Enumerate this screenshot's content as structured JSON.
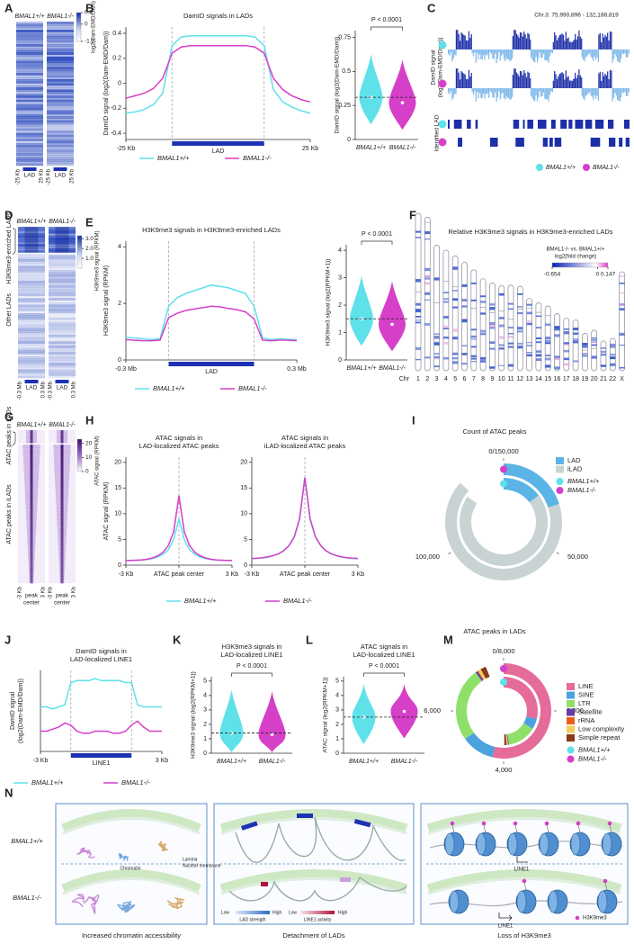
{
  "figure": {
    "panel_labels": [
      "A",
      "B",
      "C",
      "D",
      "E",
      "F",
      "G",
      "H",
      "I",
      "J",
      "K",
      "L",
      "M",
      "N"
    ],
    "diagram": {
      "genotypes": [
        "BMAL1+/+",
        "BMAL1-/-"
      ],
      "chromatin": "Chromatin",
      "lamina": "Lamina",
      "membrane": "Nuclear membrane",
      "lad_strength": [
        "Low",
        "High",
        "LAD strength"
      ],
      "line1_activity": [
        "Low",
        "High",
        "LINE1 activity"
      ],
      "line1": "LINE1",
      "h3k9me3": "H3K9me3",
      "captions": [
        "Increased chromatin accessibility",
        "Detachment of LADs",
        "Loss of H3K9me3"
      ]
    }
  },
  "chart_data": [
    {
      "type": "line",
      "title": "DamID signals in LADs",
      "ylabel": "DamID signal (log2(Dam-EMD/Dam))",
      "region_bar": true,
      "legend": "bottom",
      "x": [
        0,
        1,
        2,
        3,
        4,
        5,
        6,
        7,
        8,
        9,
        10,
        11,
        12,
        13,
        14,
        15,
        16,
        17,
        18,
        19,
        20
      ],
      "xlim": [
        0,
        20
      ],
      "xticks": [
        {
          "value": 0,
          "label": "-25 Kb"
        },
        {
          "value": 10,
          "label": "LAD"
        },
        {
          "value": 20,
          "label": "25 Kb"
        }
      ],
      "ylim": [
        -0.45,
        0.45
      ],
      "yticks": [
        -0.4,
        -0.2,
        0,
        0.2,
        0.4
      ],
      "series": [
        {
          "name": "BMAL1+/+",
          "color": "#5fe1ea",
          "values": [
            -0.24,
            -0.23,
            -0.21,
            -0.17,
            -0.08,
            0.3,
            0.37,
            0.38,
            0.38,
            0.38,
            0.38,
            0.38,
            0.38,
            0.38,
            0.37,
            0.3,
            -0.05,
            -0.15,
            -0.19,
            -0.22,
            -0.24
          ]
        },
        {
          "name": "BMAL1-/-",
          "color": "#d63fc8",
          "values": [
            -0.12,
            -0.1,
            -0.08,
            -0.04,
            0.04,
            0.24,
            0.29,
            0.3,
            0.3,
            0.3,
            0.3,
            0.3,
            0.3,
            0.3,
            0.29,
            0.24,
            0.04,
            -0.05,
            -0.1,
            -0.13,
            -0.15
          ]
        }
      ]
    },
    {
      "type": "violin",
      "ylabel": "DamID signal (log2(Dam-EMD/Dam))",
      "annotation": "P < 0.0001",
      "categories": [
        "BMAL1+/+",
        "BMAL1-/-"
      ],
      "colors": [
        "#5fe1ea",
        "#d63fc8"
      ],
      "values": [
        0.31,
        0.27
      ],
      "ylim": [
        0,
        0.8
      ],
      "yticks": [
        0,
        0.25,
        0.5,
        0.75
      ]
    },
    {
      "type": "line",
      "title": "H3K9me3 signals in H3K9me3-enriched LADs",
      "ylabel": "H3K9me3 signal (RPKM)",
      "region_bar": true,
      "legend": "bottom",
      "x": [
        0,
        1,
        2,
        3,
        4,
        5,
        6,
        7,
        8,
        9,
        10,
        11,
        12,
        13,
        14,
        15,
        16,
        17,
        18,
        19,
        20
      ],
      "xlim": [
        0,
        20
      ],
      "xticks": [
        {
          "value": 0,
          "label": "-0.3 Mb"
        },
        {
          "value": 10,
          "label": "LAD"
        },
        {
          "value": 20,
          "label": "0.3 Mb"
        }
      ],
      "ylim": [
        0,
        4.2
      ],
      "yticks": [
        0,
        2,
        4
      ],
      "series": [
        {
          "name": "BMAL1+/+",
          "color": "#5fe1ea",
          "values": [
            0.8,
            0.78,
            0.75,
            0.72,
            0.75,
            1.9,
            2.2,
            2.35,
            2.45,
            2.55,
            2.65,
            2.6,
            2.55,
            2.45,
            2.35,
            1.9,
            0.78,
            0.72,
            0.75,
            0.73,
            0.72
          ]
        },
        {
          "name": "BMAL1-/-",
          "color": "#d63fc8",
          "values": [
            0.72,
            0.7,
            0.68,
            0.68,
            0.7,
            1.5,
            1.65,
            1.75,
            1.8,
            1.85,
            1.9,
            1.88,
            1.82,
            1.78,
            1.7,
            1.45,
            0.7,
            0.68,
            0.7,
            0.7,
            0.68
          ]
        }
      ]
    },
    {
      "type": "violin",
      "ylabel": "H3K9me3 signal (log2(RPKM+1))",
      "annotation": "P < 0.0001",
      "categories": [
        "BMAL1+/+",
        "BMAL1-/-"
      ],
      "colors": [
        "#5fe1ea",
        "#d63fc8"
      ],
      "values": [
        1.5,
        1.3
      ],
      "ylim": [
        0,
        4.2
      ],
      "yticks": [
        0,
        1,
        2,
        3,
        4
      ]
    },
    {
      "type": "line",
      "title": [
        "ATAC signals in",
        "LAD-localized ATAC peaks"
      ],
      "ylabel": "ATAC signal (RPKM)",
      "legend": "bottom",
      "x": [
        0,
        1,
        2,
        3,
        4,
        5,
        6,
        7,
        8,
        9,
        10,
        11,
        12,
        13,
        14,
        15,
        16,
        17,
        18,
        19,
        20
      ],
      "xlim": [
        0,
        20
      ],
      "xticks": [
        {
          "value": 0,
          "label": "-3 Kb"
        },
        {
          "value": 10,
          "label": "ATAC peak center"
        },
        {
          "value": 20,
          "label": "3 Kb"
        }
      ],
      "ylim": [
        0,
        21
      ],
      "yticks": [
        0,
        5,
        10,
        15,
        20
      ],
      "series": [
        {
          "name": "BMAL1+/+",
          "color": "#5fe1ea",
          "values": [
            0.9,
            0.9,
            0.95,
            1,
            1.1,
            1.3,
            1.6,
            2.1,
            3,
            5,
            9,
            5,
            3,
            2.1,
            1.6,
            1.3,
            1.1,
            1,
            0.95,
            0.9,
            0.9
          ]
        },
        {
          "name": "BMAL1-/-",
          "color": "#d63fc8",
          "values": [
            0.9,
            0.92,
            0.97,
            1.02,
            1.15,
            1.4,
            1.8,
            2.5,
            3.8,
            6.5,
            13.5,
            6.5,
            3.8,
            2.5,
            1.8,
            1.4,
            1.15,
            1.02,
            0.97,
            0.92,
            0.9
          ]
        }
      ]
    },
    {
      "type": "line",
      "title": [
        "ATAC signals in",
        "iLAD-localized ATAC peaks"
      ],
      "x": [
        0,
        1,
        2,
        3,
        4,
        5,
        6,
        7,
        8,
        9,
        10,
        11,
        12,
        13,
        14,
        15,
        16,
        17,
        18,
        19,
        20
      ],
      "xlim": [
        0,
        20
      ],
      "xticks": [
        {
          "value": 0,
          "label": "-3 Kb"
        },
        {
          "value": 10,
          "label": "ATAC peak center"
        },
        {
          "value": 20,
          "label": "3 Kb"
        }
      ],
      "ylim": [
        0,
        21
      ],
      "yticks": [
        0,
        5,
        10,
        15,
        20
      ],
      "series": [
        {
          "color": "#5fe1ea",
          "values": [
            1.25,
            1.3,
            1.4,
            1.55,
            1.8,
            2.15,
            2.75,
            3.75,
            5.4,
            8.9,
            16.9,
            8.9,
            5.4,
            3.75,
            2.75,
            2.15,
            1.8,
            1.55,
            1.4,
            1.3,
            1.25
          ]
        },
        {
          "color": "#d63fc8",
          "values": [
            1.3,
            1.35,
            1.45,
            1.6,
            1.85,
            2.2,
            2.8,
            3.8,
            5.5,
            9,
            17,
            9,
            5.5,
            3.8,
            2.8,
            2.2,
            1.85,
            1.6,
            1.45,
            1.35,
            1.3
          ]
        }
      ]
    },
    {
      "type": "line",
      "title": [
        "DamID signals in",
        "LAD-localized LINE1"
      ],
      "ylabel": [
        "DamID signal",
        "(log2(Dam-EMD/Dam))"
      ],
      "region_bar": true,
      "legend": "bottom",
      "x": [
        0,
        1,
        2,
        3,
        4,
        5,
        6,
        7,
        8,
        9,
        10,
        11,
        12,
        13,
        14,
        15,
        16,
        17,
        18,
        19,
        20
      ],
      "xlim": [
        0,
        20
      ],
      "xticks": [
        {
          "value": 0,
          "label": "-3 Kb"
        },
        {
          "value": 10,
          "label": "LINE1"
        },
        {
          "value": 20,
          "label": "3 Kb"
        }
      ],
      "ylim": [
        0.2,
        0.6
      ],
      "series": [
        {
          "name": "BMAL1+/+",
          "color": "#5fe1ea",
          "values": [
            0.42,
            0.42,
            0.41,
            0.42,
            0.43,
            0.54,
            0.55,
            0.55,
            0.55,
            0.56,
            0.55,
            0.55,
            0.55,
            0.55,
            0.54,
            0.54,
            0.43,
            0.42,
            0.42,
            0.42,
            0.42
          ]
        },
        {
          "name": "BMAL1-/-",
          "color": "#d63fc8",
          "values": [
            0.3,
            0.3,
            0.31,
            0.32,
            0.34,
            0.33,
            0.3,
            0.29,
            0.29,
            0.3,
            0.3,
            0.3,
            0.29,
            0.29,
            0.3,
            0.33,
            0.35,
            0.32,
            0.3,
            0.3,
            0.3
          ]
        }
      ]
    },
    {
      "type": "violin",
      "title": [
        "H3K9me3 signals in",
        "LAD-localized LINE1"
      ],
      "ylabel": "H3K9me3 signal (log2(RPKM+1))",
      "annotation": "P < 0.0001",
      "categories": [
        "BMAL1+/+",
        "BMAL1-/-"
      ],
      "colors": [
        "#5fe1ea",
        "#d63fc8"
      ],
      "values": [
        1.4,
        1.3
      ],
      "ylim": [
        0,
        5.3
      ],
      "yticks": [
        0,
        1,
        2,
        3,
        4,
        5
      ]
    },
    {
      "type": "violin",
      "title": [
        "ATAC signals in",
        "LAD-localized LINE1"
      ],
      "ylabel": "ATAC signal (log2(RPKM+1))",
      "annotation": "P < 0.0001",
      "categories": [
        "BMAL1+/+",
        "BMAL1-/-"
      ],
      "colors": [
        "#5fe1ea",
        "#d63fc8"
      ],
      "values": [
        2.5,
        2.9
      ],
      "ylim": [
        0,
        5.3
      ],
      "yticks": [
        0,
        1,
        2,
        3,
        4,
        5
      ]
    },
    {
      "type": "donut",
      "title": "Count of ATAC peaks",
      "categories": [
        "LAD",
        "iLAD"
      ],
      "colors": [
        "#5ab4e5",
        "#c9d3d3"
      ],
      "lim": [
        0,
        150000
      ],
      "ticks": [
        {
          "value": 0,
          "label": "0/150,000"
        },
        {
          "value": 50000,
          "label": "50,000"
        },
        {
          "value": 100000,
          "label": "100,000"
        }
      ],
      "rings": [
        {
          "name": "BMAL1+/+",
          "color": "#5fe1ea",
          "values": [
            22000,
            105000
          ]
        },
        {
          "name": "BMAL1-/-",
          "color": "#d63fc8",
          "values": [
            30000,
            100000
          ]
        }
      ]
    },
    {
      "type": "donut",
      "title": "ATAC peaks in LADs",
      "categories": [
        "LINE",
        "SINE",
        "LTR",
        "Satellite",
        "rRNA",
        "Low complexity",
        "Simple repeat"
      ],
      "colors": [
        "#e56b9a",
        "#4aa3df",
        "#8fe06a",
        "#6a3aa6",
        "#e8601c",
        "#f2cf5b",
        "#8b3a1a"
      ],
      "lim": [
        0,
        8000
      ],
      "ticks": [
        {
          "value": 0,
          "label": "0/8,000"
        },
        {
          "value": 2000,
          "label": "2,000"
        },
        {
          "value": 4000,
          "label": "4,000"
        },
        {
          "value": 6000,
          "label": "6,000"
        }
      ],
      "rings": [
        {
          "name": "BMAL1+/+",
          "color": "#5fe1ea",
          "values": [
            2300,
            400,
            1100,
            30,
            10,
            50,
            80
          ]
        },
        {
          "name": "BMAL1-/-",
          "color": "#d63fc8",
          "values": [
            4300,
            900,
            2000,
            60,
            20,
            80,
            150
          ]
        }
      ]
    },
    {
      "type": "ideogram",
      "title": "Relative H3K9me3 signals in H3K9me3-enriched LADs",
      "axis_label": "Chr",
      "categories": [
        "1",
        "2",
        "3",
        "4",
        "5",
        "6",
        "7",
        "8",
        "9",
        "10",
        "11",
        "12",
        "13",
        "14",
        "15",
        "16",
        "17",
        "18",
        "19",
        "20",
        "21",
        "22",
        "X"
      ],
      "colorbar": {
        "title": [
          "BMAL1-/- vs. BMAL1+/+",
          "log2(fold change)"
        ],
        "lim": [
          -0.654,
          0.147
        ],
        "ticks": [
          -0.654,
          0,
          0.147
        ]
      }
    },
    {
      "type": "heatmap",
      "columns": [
        "BMAL1+/+",
        "BMAL1-/-"
      ],
      "xlabels": [
        "-25 Kb",
        "LAD",
        "25 Kb"
      ],
      "region_bar": true,
      "colorbar": {
        "title": "log2(Dam-EMD/Dam)",
        "lim": [
          -1.2,
          0.8
        ],
        "ticks": [
          0.8,
          0,
          -1.2
        ]
      }
    },
    {
      "type": "heatmap",
      "columns": [
        "BMAL1+/+",
        "BMAL1-/-"
      ],
      "xlabels": [
        "-0.3 Mb",
        "LAD",
        "0.3 Mb"
      ],
      "region_bar": true,
      "row_labels": [
        "H3K9me3-enriched LADs",
        "Other LADs"
      ],
      "colorbar": {
        "title": "H3K9me3 signal (RPKM)",
        "lim": [
          0,
          3.3
        ],
        "ticks": [
          {
            "value": 3,
            "label": "3.0"
          },
          {
            "value": 2,
            "label": "2.0"
          },
          {
            "value": 1,
            "label": "1.0"
          }
        ]
      }
    },
    {
      "type": "heatmap",
      "columns": [
        "BMAL1+/+",
        "BMAL1-/-"
      ],
      "xlabels": [
        "-3 Kb",
        [
          "peak",
          "center"
        ],
        "3 Kb"
      ],
      "row_labels": [
        "ATAC peaks in LADs",
        "ATAC peaks in iLADs"
      ],
      "colorbar": {
        "title": "ATAC signal (RPKM)",
        "lim": [
          0,
          23
        ],
        "ticks": [
          20,
          10,
          0
        ]
      }
    },
    {
      "type": "tracks",
      "region": "Chr.3: 75,990,896 - 132,188,819",
      "track_labels": [
        [
          "DamID signal",
          "(log2(Dam-EMD/Dam))"
        ],
        "Identified LAD"
      ],
      "legend": [
        {
          "name": "BMAL1+/+",
          "color": "#5fe1ea"
        },
        {
          "name": "BMAL1-/-",
          "color": "#d63fc8"
        }
      ]
    }
  ]
}
